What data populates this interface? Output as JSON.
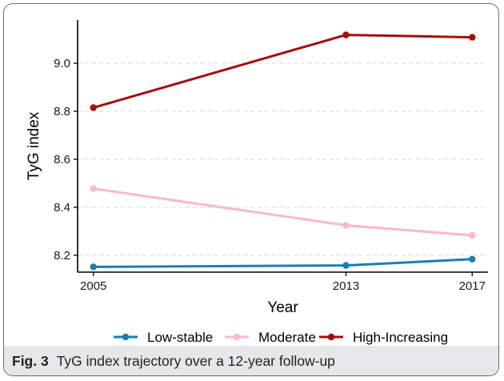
{
  "figure": {
    "caption_label": "Fig. 3",
    "caption_text": "TyG index trajectory over a 12-year follow-up"
  },
  "chart_data": {
    "type": "line",
    "title": "",
    "xlabel": "Year",
    "ylabel": "TyG index",
    "x": [
      2005,
      2013,
      2017
    ],
    "xlim": [
      2004.5,
      2017.5
    ],
    "ylim": [
      8.13,
      9.18
    ],
    "yticks": [
      8.2,
      8.4,
      8.6,
      8.8,
      9.0
    ],
    "ytick_labels": [
      "8.2",
      "8.4",
      "8.6",
      "8.8",
      "9.0"
    ],
    "xtick_labels": [
      "2005",
      "2013",
      "2017"
    ],
    "grid": "horizontal dashed",
    "legend_position": "bottom",
    "series": [
      {
        "name": "Low-stable",
        "color": "#1a7fb0",
        "values": [
          8.152,
          8.158,
          8.184
        ]
      },
      {
        "name": "Moderate",
        "color": "#f9b9c9",
        "values": [
          8.478,
          8.325,
          8.283
        ]
      },
      {
        "name": "High-Increasing",
        "color": "#a30f0f",
        "values": [
          8.815,
          9.118,
          9.108
        ]
      }
    ]
  }
}
